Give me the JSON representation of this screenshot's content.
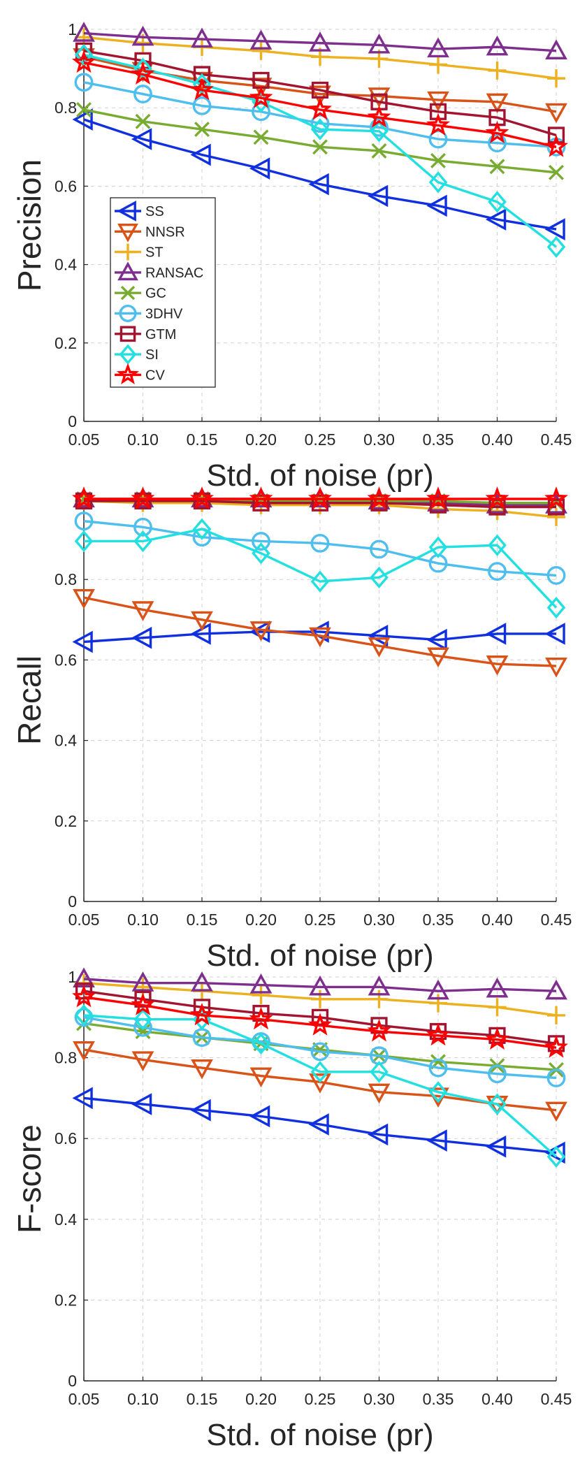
{
  "chart_data": [
    {
      "type": "line",
      "title": "",
      "xlabel": "Std. of noise (pr)",
      "ylabel": "Precision",
      "xlim": [
        0.05,
        0.45
      ],
      "ylim": [
        0,
        1
      ],
      "grid": true,
      "legend": "inside-left",
      "x": [
        0.05,
        0.1,
        0.15,
        0.2,
        0.25,
        0.3,
        0.35,
        0.4,
        0.45
      ],
      "xticklabels": [
        "0.05",
        "0.10",
        "0.15",
        "0.20",
        "0.25",
        "0.30",
        "0.35",
        "0.40",
        "0.45"
      ],
      "yticks": [
        0,
        0.2,
        0.4,
        0.6,
        0.8,
        1
      ],
      "yticklabels": [
        "0",
        "0.2",
        "0.4",
        "0.6",
        "0.8",
        "1"
      ],
      "series": [
        {
          "name": "SS",
          "values": [
            0.77,
            0.72,
            0.68,
            0.645,
            0.605,
            0.575,
            0.55,
            0.515,
            0.49
          ]
        },
        {
          "name": "NNSR",
          "values": [
            0.93,
            0.895,
            0.87,
            0.855,
            0.835,
            0.83,
            0.82,
            0.815,
            0.79
          ]
        },
        {
          "name": "ST",
          "values": [
            0.98,
            0.965,
            0.955,
            0.945,
            0.93,
            0.925,
            0.91,
            0.895,
            0.875
          ]
        },
        {
          "name": "RANSAC",
          "values": [
            0.99,
            0.98,
            0.975,
            0.97,
            0.965,
            0.96,
            0.95,
            0.955,
            0.945
          ]
        },
        {
          "name": "GC",
          "values": [
            0.795,
            0.765,
            0.745,
            0.725,
            0.7,
            0.69,
            0.665,
            0.65,
            0.635
          ]
        },
        {
          "name": "3DHV",
          "values": [
            0.865,
            0.835,
            0.805,
            0.79,
            0.76,
            0.75,
            0.72,
            0.71,
            0.7
          ]
        },
        {
          "name": "GTM",
          "values": [
            0.945,
            0.92,
            0.885,
            0.87,
            0.845,
            0.815,
            0.79,
            0.775,
            0.73
          ]
        },
        {
          "name": "SI",
          "values": [
            0.935,
            0.9,
            0.86,
            0.815,
            0.745,
            0.74,
            0.61,
            0.56,
            0.445
          ]
        },
        {
          "name": "CV",
          "values": [
            0.915,
            0.885,
            0.845,
            0.825,
            0.795,
            0.775,
            0.755,
            0.735,
            0.7
          ]
        }
      ]
    },
    {
      "type": "line",
      "title": "",
      "xlabel": "Std. of noise (pr)",
      "ylabel": "Recall",
      "xlim": [
        0.05,
        0.45
      ],
      "ylim": [
        0,
        1
      ],
      "grid": true,
      "legend": "none",
      "x": [
        0.05,
        0.1,
        0.15,
        0.2,
        0.25,
        0.3,
        0.35,
        0.4,
        0.45
      ],
      "xticklabels": [
        "0.05",
        "0.10",
        "0.15",
        "0.20",
        "0.25",
        "0.30",
        "0.35",
        "0.40",
        "0.45"
      ],
      "yticks": [
        0,
        0.2,
        0.4,
        0.6,
        0.8
      ],
      "yticklabels": [
        "0",
        "0.2",
        "0.4",
        "0.6",
        "0.8"
      ],
      "series": [
        {
          "name": "SS",
          "values": [
            0.645,
            0.655,
            0.665,
            0.67,
            0.67,
            0.66,
            0.65,
            0.665,
            0.665
          ]
        },
        {
          "name": "NNSR",
          "values": [
            0.755,
            0.725,
            0.7,
            0.675,
            0.66,
            0.635,
            0.61,
            0.59,
            0.585
          ]
        },
        {
          "name": "ST",
          "values": [
            0.995,
            0.99,
            0.99,
            0.985,
            0.985,
            0.985,
            0.975,
            0.97,
            0.955
          ]
        },
        {
          "name": "RANSAC",
          "values": [
            1.0,
            1.0,
            1.0,
            1.0,
            1.0,
            0.995,
            0.99,
            0.985,
            0.985
          ]
        },
        {
          "name": "GC",
          "values": [
            1.0,
            1.0,
            1.0,
            0.995,
            0.995,
            0.995,
            0.995,
            0.99,
            0.99
          ]
        },
        {
          "name": "3DHV",
          "values": [
            0.945,
            0.93,
            0.905,
            0.895,
            0.89,
            0.875,
            0.84,
            0.82,
            0.81
          ]
        },
        {
          "name": "GTM",
          "values": [
            0.995,
            0.995,
            0.995,
            0.99,
            0.99,
            0.99,
            0.985,
            0.98,
            0.98
          ]
        },
        {
          "name": "SI",
          "values": [
            0.895,
            0.895,
            0.925,
            0.865,
            0.795,
            0.805,
            0.88,
            0.885,
            0.73
          ]
        },
        {
          "name": "CV",
          "values": [
            1.0,
            1.0,
            1.0,
            1.0,
            1.0,
            1.0,
            1.0,
            1.0,
            1.0
          ]
        }
      ]
    },
    {
      "type": "line",
      "title": "",
      "xlabel": "Std. of noise (pr)",
      "ylabel": "F-score",
      "xlim": [
        0.05,
        0.45
      ],
      "ylim": [
        0,
        1
      ],
      "grid": true,
      "legend": "none",
      "x": [
        0.05,
        0.1,
        0.15,
        0.2,
        0.25,
        0.3,
        0.35,
        0.4,
        0.45
      ],
      "xticklabels": [
        "0.05",
        "0.10",
        "0.15",
        "0.20",
        "0.25",
        "0.30",
        "0.35",
        "0.40",
        "0.45"
      ],
      "yticks": [
        0,
        0.2,
        0.4,
        0.6,
        0.8,
        1
      ],
      "yticklabels": [
        "0",
        "0.2",
        "0.4",
        "0.6",
        "0.8",
        "1"
      ],
      "series": [
        {
          "name": "SS",
          "values": [
            0.7,
            0.685,
            0.67,
            0.655,
            0.635,
            0.61,
            0.595,
            0.58,
            0.565
          ]
        },
        {
          "name": "NNSR",
          "values": [
            0.82,
            0.795,
            0.775,
            0.755,
            0.74,
            0.715,
            0.705,
            0.685,
            0.67
          ]
        },
        {
          "name": "ST",
          "values": [
            0.985,
            0.975,
            0.965,
            0.955,
            0.945,
            0.945,
            0.935,
            0.925,
            0.905
          ]
        },
        {
          "name": "RANSAC",
          "values": [
            0.995,
            0.985,
            0.985,
            0.98,
            0.975,
            0.975,
            0.965,
            0.97,
            0.965
          ]
        },
        {
          "name": "GC",
          "values": [
            0.885,
            0.865,
            0.85,
            0.835,
            0.82,
            0.805,
            0.79,
            0.78,
            0.77
          ]
        },
        {
          "name": "3DHV",
          "values": [
            0.9,
            0.875,
            0.85,
            0.84,
            0.815,
            0.805,
            0.775,
            0.76,
            0.75
          ]
        },
        {
          "name": "GTM",
          "values": [
            0.965,
            0.945,
            0.925,
            0.91,
            0.9,
            0.88,
            0.865,
            0.855,
            0.835
          ]
        },
        {
          "name": "SI",
          "values": [
            0.905,
            0.895,
            0.895,
            0.835,
            0.765,
            0.765,
            0.715,
            0.685,
            0.555
          ]
        },
        {
          "name": "CV",
          "values": [
            0.95,
            0.93,
            0.905,
            0.895,
            0.88,
            0.865,
            0.855,
            0.845,
            0.825
          ]
        }
      ]
    }
  ],
  "series_style": [
    {
      "name": "SS",
      "color": "#1030e0",
      "marker": "triangle-left"
    },
    {
      "name": "NNSR",
      "color": "#d95319",
      "marker": "triangle-down"
    },
    {
      "name": "ST",
      "color": "#edb120",
      "marker": "plus"
    },
    {
      "name": "RANSAC",
      "color": "#7e2f8e",
      "marker": "triangle-up"
    },
    {
      "name": "GC",
      "color": "#77ac30",
      "marker": "x"
    },
    {
      "name": "3DHV",
      "color": "#4dbeee",
      "marker": "circle"
    },
    {
      "name": "GTM",
      "color": "#a2142f",
      "marker": "square"
    },
    {
      "name": "SI",
      "color": "#22e0e0",
      "marker": "diamond"
    },
    {
      "name": "CV",
      "color": "#ff0000",
      "marker": "star"
    }
  ]
}
